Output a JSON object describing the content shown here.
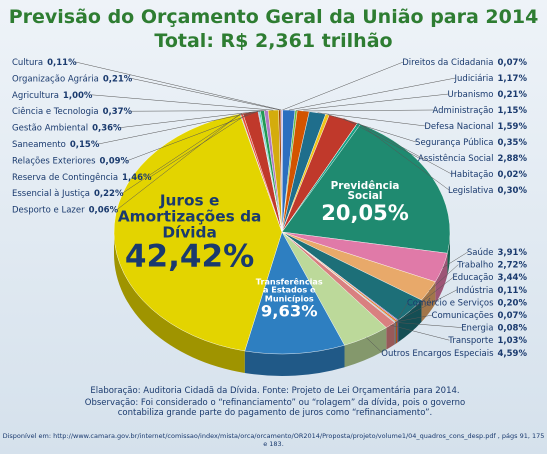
{
  "chart_data": {
    "type": "pie",
    "title": "Previsão do Orçamento Geral da União para 2014",
    "subtitle": "Total: R$ 2,361 trilhão",
    "categories": [
      "Direitos da Cidadania",
      "Judiciária",
      "Urbanismo",
      "Administração",
      "Defesa Nacional",
      "Segurança Pública",
      "Assistência Social",
      "Habitação",
      "Legislativa",
      "Previdência Social",
      "Saúde",
      "Trabalho",
      "Educação",
      "Indústria",
      "Comércio e Serviços",
      "Comunicações",
      "Energia",
      "Transporte",
      "Outros Encargos Especiais",
      "Transferências a Estados e Municípios",
      "Juros e Amortizações da Dívida",
      "Desporto e Lazer",
      "Essencial à Justiça",
      "Reserva de Contingência",
      "Relações Exteriores",
      "Saneamento",
      "Gestão Ambiental",
      "Ciência e Tecnologia",
      "Agricultura",
      "Organização Agrária",
      "Cultura"
    ],
    "values": [
      0.07,
      1.17,
      0.21,
      1.15,
      1.59,
      0.35,
      2.88,
      0.02,
      0.3,
      20.05,
      3.91,
      2.72,
      3.44,
      0.11,
      0.2,
      0.07,
      0.08,
      1.03,
      4.59,
      9.63,
      42.42,
      0.06,
      0.22,
      1.46,
      0.09,
      0.15,
      0.36,
      0.37,
      1.0,
      0.21,
      0.11
    ],
    "value_labels": [
      "0,07%",
      "1,17%",
      "0,21%",
      "1,15%",
      "1,59%",
      "0,35%",
      "2,88%",
      "0,02%",
      "0,30%",
      "20,05%",
      "3,91%",
      "2,72%",
      "3,44%",
      "0,11%",
      "0,20%",
      "0,07%",
      "0,08%",
      "1,03%",
      "4,59%",
      "9,63%",
      "42,42%",
      "0,06%",
      "0,22%",
      "1,46%",
      "0,09%",
      "0,15%",
      "0,36%",
      "0,37%",
      "1,00%",
      "0,21%",
      "0,11%"
    ],
    "colors": [
      "#9b59b6",
      "#2c6fbf",
      "#6dbd45",
      "#d35400",
      "#1f6e8c",
      "#f0c419",
      "#c0392b",
      "#7f8c8d",
      "#16a085",
      "#1f8a70",
      "#e07aa8",
      "#e8a96a",
      "#1d6f78",
      "#8e44ad",
      "#e67e22",
      "#34495e",
      "#95a5a6",
      "#d98080",
      "#bcd99a",
      "#2e7fc1",
      "#e3d400",
      "#27ae60",
      "#e74c3c",
      "#c0392b",
      "#5dade2",
      "#48c9b0",
      "#229954",
      "#af7ac5",
      "#d4ac0d",
      "#a04000",
      "#b8a0d8"
    ],
    "footer": {
      "source": "Elaboração: Auditoria Cidadã da Dívida. Fonte: Projeto de Lei Orçamentária para 2014.",
      "note": "Observação:  Foi considerado o “refinanciamento” ou “rolagem” da dívida, pois o governo contabiliza grande parte do pagamento de juros como “refinanciamento”.",
      "link": "Disponível em: http://www.camara.gov.br/internet/comissao/index/mista/orca/orcamento/OR2014/Proposta/projeto/volume1/04_quadros_cons_desp.pdf , págs 91, 175 e 183."
    }
  }
}
